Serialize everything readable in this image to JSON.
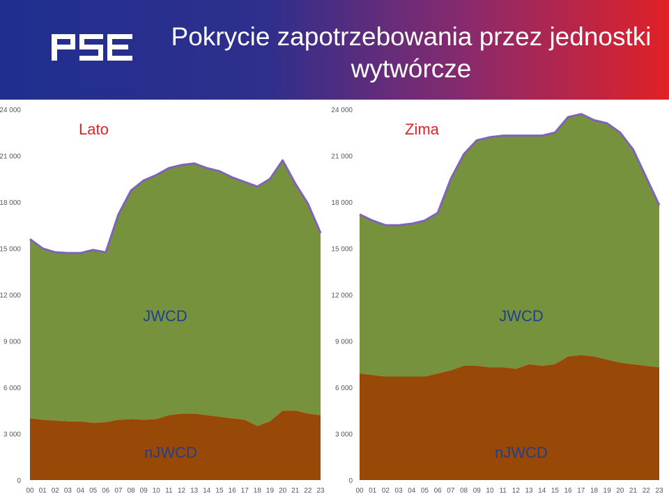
{
  "header": {
    "logo_text": "PSE",
    "title_line1": "Pokrycie zapotrzebowania przez jednostki",
    "title_line2": "wytwórcze"
  },
  "colors": {
    "jwcd": "#76923c",
    "njwcd": "#984807",
    "demand_line": "#7f63b8",
    "season_label": "#e02127"
  },
  "chart_data": [
    {
      "type": "area",
      "title": "Lato",
      "xlabel": "",
      "ylabel": "",
      "ylim": [
        0,
        24000
      ],
      "yticks": [
        0,
        3000,
        6000,
        9000,
        12000,
        15000,
        18000,
        21000,
        24000
      ],
      "ytick_labels": [
        "0",
        "3 000",
        "6 000",
        "9 000",
        "12 000",
        "15 000",
        "18 000",
        "21 000",
        "24 000"
      ],
      "x": [
        "00",
        "01",
        "02",
        "03",
        "04",
        "05",
        "06",
        "07",
        "08",
        "09",
        "10",
        "11",
        "12",
        "13",
        "14",
        "15",
        "16",
        "17",
        "18",
        "19",
        "20",
        "21",
        "22",
        "23"
      ],
      "grid": false,
      "annotations": [
        "JWCD",
        "nJWCD"
      ],
      "series": [
        {
          "name": "nJWCD",
          "values": [
            4000,
            3900,
            3850,
            3800,
            3800,
            3700,
            3750,
            3900,
            3950,
            3900,
            3950,
            4200,
            4300,
            4300,
            4200,
            4100,
            4000,
            3900,
            3500,
            3800,
            4500,
            4500,
            4300,
            4200
          ]
        },
        {
          "name": "JWCD",
          "values": [
            11600,
            11100,
            10900,
            10900,
            10900,
            11200,
            11000,
            13300,
            14800,
            15500,
            15800,
            16000,
            16100,
            16200,
            16000,
            15900,
            15600,
            15400,
            15500,
            15700,
            16200,
            14700,
            13600,
            11800
          ]
        }
      ],
      "demand": [
        15600,
        15000,
        14750,
        14700,
        14700,
        14900,
        14750,
        17200,
        18750,
        19400,
        19750,
        20200,
        20400,
        20500,
        20200,
        20000,
        19600,
        19300,
        19000,
        19500,
        20700,
        19200,
        17900,
        16000
      ]
    },
    {
      "type": "area",
      "title": "Zima",
      "xlabel": "",
      "ylabel": "",
      "ylim": [
        0,
        24000
      ],
      "yticks": [
        0,
        3000,
        6000,
        9000,
        12000,
        15000,
        18000,
        21000,
        24000
      ],
      "ytick_labels": [
        "0",
        "3 000",
        "6 000",
        "9 000",
        "12 000",
        "15 000",
        "18 000",
        "21 000",
        "24 000"
      ],
      "x": [
        "00",
        "01",
        "02",
        "03",
        "04",
        "05",
        "06",
        "07",
        "08",
        "09",
        "10",
        "11",
        "12",
        "13",
        "14",
        "15",
        "16",
        "17",
        "18",
        "19",
        "20",
        "21",
        "22",
        "23"
      ],
      "grid": false,
      "annotations": [
        "JWCD",
        "nJWCD"
      ],
      "series": [
        {
          "name": "nJWCD",
          "values": [
            6900,
            6800,
            6700,
            6700,
            6700,
            6700,
            6900,
            7100,
            7400,
            7400,
            7300,
            7300,
            7200,
            7500,
            7400,
            7500,
            8000,
            8100,
            8000,
            7800,
            7600,
            7500,
            7400,
            7300
          ]
        },
        {
          "name": "JWCD",
          "values": [
            10300,
            10000,
            9800,
            9800,
            9900,
            10100,
            10400,
            12400,
            13700,
            14600,
            14900,
            15000,
            15100,
            14800,
            14900,
            15000,
            15500,
            15600,
            15300,
            15300,
            14900,
            13900,
            12200,
            10500
          ]
        }
      ],
      "demand": [
        17200,
        16800,
        16500,
        16500,
        16600,
        16800,
        17300,
        19500,
        21100,
        22000,
        22200,
        22300,
        22300,
        22300,
        22300,
        22500,
        23500,
        23700,
        23300,
        23100,
        22500,
        21400,
        19600,
        17800
      ]
    }
  ]
}
